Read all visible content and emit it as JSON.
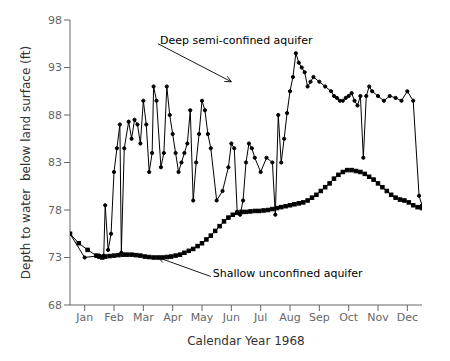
{
  "chart_data": {
    "type": "line",
    "xlabel": "Calendar Year 1968",
    "ylabel": "Depth to water  below land surface (ft)",
    "xlim": [
      0,
      12
    ],
    "xticks": [
      {
        "value": 0.5,
        "label": "Jan"
      },
      {
        "value": 1.5,
        "label": "Feb"
      },
      {
        "value": 2.5,
        "label": "Mar"
      },
      {
        "value": 3.5,
        "label": "Apr"
      },
      {
        "value": 4.5,
        "label": "May"
      },
      {
        "value": 5.5,
        "label": "Jun"
      },
      {
        "value": 6.5,
        "label": "Jul"
      },
      {
        "value": 7.5,
        "label": "Aug"
      },
      {
        "value": 8.5,
        "label": "Sep"
      },
      {
        "value": 9.5,
        "label": "Oct"
      },
      {
        "value": 10.5,
        "label": "Nov"
      },
      {
        "value": 11.5,
        "label": "Dec"
      }
    ],
    "ylim": [
      68,
      98
    ],
    "yticks": [
      68,
      73,
      78,
      83,
      88,
      93,
      98
    ],
    "series": [
      {
        "color": "#000000",
        "marker": "square",
        "x": [
          0,
          0.3,
          0.6,
          0.9,
          1.0,
          1.1,
          1.2,
          1.35,
          1.5,
          1.65,
          1.8,
          1.95,
          2.1,
          2.25,
          2.4,
          2.55,
          2.7,
          2.85,
          3.0,
          3.15,
          3.3,
          3.45,
          3.6,
          3.75,
          3.9,
          4.05,
          4.2,
          4.35,
          4.5,
          4.65,
          4.8,
          4.95,
          5.1,
          5.25,
          5.4,
          5.55,
          5.7,
          5.85,
          6.0,
          6.15,
          6.3,
          6.45,
          6.6,
          6.75,
          6.9,
          7.05,
          7.2,
          7.35,
          7.5,
          7.65,
          7.8,
          7.95,
          8.1,
          8.25,
          8.4,
          8.55,
          8.7,
          8.85,
          9.0,
          9.15,
          9.3,
          9.45,
          9.6,
          9.75,
          9.9,
          10.05,
          10.2,
          10.35,
          10.5,
          10.65,
          10.8,
          10.95,
          11.1,
          11.25,
          11.4,
          11.55,
          11.7,
          11.85,
          12.0
        ],
        "values": [
          75.5,
          74.5,
          73.8,
          73.2,
          73.1,
          73.0,
          73.1,
          73.15,
          73.2,
          73.25,
          73.3,
          73.3,
          73.3,
          73.25,
          73.2,
          73.1,
          73.05,
          73.0,
          73.0,
          73.0,
          73.05,
          73.1,
          73.2,
          73.3,
          73.5,
          73.7,
          73.9,
          74.2,
          74.5,
          74.9,
          75.3,
          75.8,
          76.3,
          76.8,
          77.2,
          77.5,
          77.7,
          77.8,
          77.8,
          77.85,
          77.9,
          77.9,
          77.95,
          78.0,
          78.1,
          78.2,
          78.3,
          78.4,
          78.5,
          78.6,
          78.7,
          78.8,
          79.0,
          79.3,
          79.6,
          80.0,
          80.4,
          80.8,
          81.3,
          81.7,
          82.0,
          82.2,
          82.2,
          82.1,
          82.0,
          81.8,
          81.5,
          81.2,
          80.8,
          80.4,
          80.0,
          79.6,
          79.3,
          79.1,
          79.0,
          78.8,
          78.5,
          78.3,
          78.2
        ]
      },
      {
        "color": "#000000",
        "marker": "circle",
        "x": [
          0,
          0.5,
          1.0,
          1.15,
          1.2,
          1.3,
          1.4,
          1.5,
          1.6,
          1.7,
          1.75,
          1.85,
          2.0,
          2.1,
          2.2,
          2.3,
          2.4,
          2.5,
          2.6,
          2.7,
          2.8,
          2.85,
          2.95,
          3.1,
          3.2,
          3.3,
          3.4,
          3.5,
          3.6,
          3.7,
          3.8,
          3.9,
          4.0,
          4.1,
          4.2,
          4.3,
          4.4,
          4.5,
          4.6,
          4.7,
          4.8,
          5.0,
          5.2,
          5.4,
          5.5,
          5.6,
          5.7,
          5.8,
          5.9,
          6.0,
          6.1,
          6.2,
          6.3,
          6.5,
          6.7,
          6.9,
          7.0,
          7.1,
          7.2,
          7.3,
          7.4,
          7.5,
          7.6,
          7.7,
          7.8,
          7.9,
          8.0,
          8.1,
          8.2,
          8.3,
          8.5,
          8.7,
          8.9,
          9.0,
          9.1,
          9.2,
          9.3,
          9.4,
          9.5,
          9.6,
          9.7,
          9.8,
          9.9,
          10.0,
          10.1,
          10.2,
          10.3,
          10.5,
          10.7,
          10.9,
          11.1,
          11.3,
          11.5,
          11.7,
          11.9,
          12.0
        ],
        "values": [
          75.5,
          73.0,
          73.2,
          73.2,
          78.5,
          73.8,
          75.5,
          82.0,
          84.5,
          87.0,
          73.5,
          84.5,
          87.3,
          85.5,
          87.5,
          87.0,
          85.0,
          89.5,
          87.0,
          82.0,
          84.0,
          91.0,
          89.5,
          82.5,
          84.0,
          91.0,
          88.0,
          86.0,
          84.0,
          82.0,
          83.0,
          84.0,
          85.0,
          88.5,
          79.0,
          83.0,
          86.0,
          89.5,
          88.5,
          86.0,
          84.5,
          79.0,
          80.0,
          82.5,
          85.0,
          84.5,
          77.8,
          77.5,
          79.0,
          83.0,
          85.0,
          84.5,
          83.5,
          82.0,
          83.5,
          83.0,
          77.5,
          88.0,
          83.0,
          85.5,
          88.2,
          90.5,
          92.0,
          94.5,
          93.5,
          93.0,
          92.5,
          91.0,
          91.5,
          92.0,
          91.5,
          91.0,
          90.5,
          90.0,
          89.8,
          89.5,
          89.5,
          89.8,
          90.0,
          90.3,
          89.5,
          89.0,
          90.0,
          83.5,
          90.0,
          91.0,
          90.5,
          90.0,
          89.5,
          90.0,
          89.8,
          89.5,
          90.5,
          89.5,
          79.5,
          78.5
        ]
      }
    ],
    "annotations": [
      {
        "text": "Shallow unconfined aquifer",
        "x": 3.0,
        "y": 73.0,
        "text_x": 4.8,
        "text_y": 71.0
      },
      {
        "text": "Deep semi-confined aquifer",
        "x": 5.5,
        "y": 91.5,
        "text_x": 3.0,
        "text_y": 95.5
      }
    ]
  }
}
